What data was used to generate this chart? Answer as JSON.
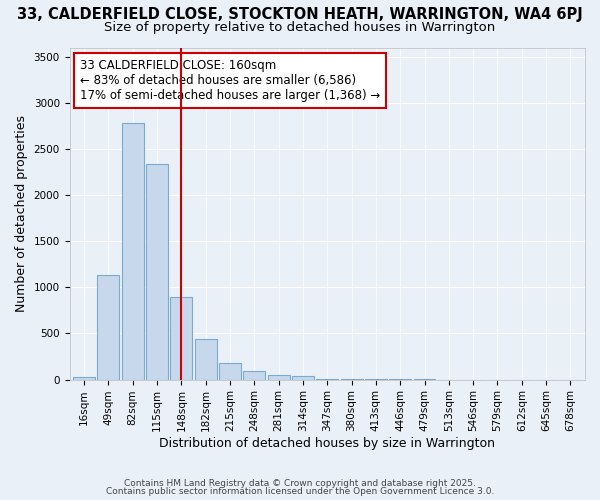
{
  "title_line1": "33, CALDERFIELD CLOSE, STOCKTON HEATH, WARRINGTON, WA4 6PJ",
  "title_line2": "Size of property relative to detached houses in Warrington",
  "xlabel": "Distribution of detached houses by size in Warrington",
  "ylabel": "Number of detached properties",
  "categories": [
    "16sqm",
    "49sqm",
    "82sqm",
    "115sqm",
    "148sqm",
    "182sqm",
    "215sqm",
    "248sqm",
    "281sqm",
    "314sqm",
    "347sqm",
    "380sqm",
    "413sqm",
    "446sqm",
    "479sqm",
    "513sqm",
    "546sqm",
    "579sqm",
    "612sqm",
    "645sqm",
    "678sqm"
  ],
  "values": [
    30,
    1130,
    2780,
    2340,
    890,
    440,
    175,
    95,
    55,
    35,
    10,
    5,
    3,
    2,
    2,
    1,
    0,
    0,
    0,
    0,
    0
  ],
  "bar_color": "#c8d8ec",
  "bar_edge_color": "#7aaad0",
  "vline_x": 4,
  "vline_color": "#cc0000",
  "annotation_title": "33 CALDERFIELD CLOSE: 160sqm",
  "annotation_line1": "← 83% of detached houses are smaller (6,586)",
  "annotation_line2": "17% of semi-detached houses are larger (1,368) →",
  "annotation_box_color": "#ffffff",
  "annotation_box_edge": "#cc0000",
  "ylim": [
    0,
    3600
  ],
  "yticks": [
    0,
    500,
    1000,
    1500,
    2000,
    2500,
    3000,
    3500
  ],
  "background_color": "#eaf0f8",
  "grid_color": "#ffffff",
  "footer_line1": "Contains HM Land Registry data © Crown copyright and database right 2025.",
  "footer_line2": "Contains public sector information licensed under the Open Government Licence 3.0.",
  "title_fontsize": 10.5,
  "subtitle_fontsize": 9.5,
  "tick_fontsize": 7.5,
  "label_fontsize": 9,
  "annotation_fontsize": 8.5
}
